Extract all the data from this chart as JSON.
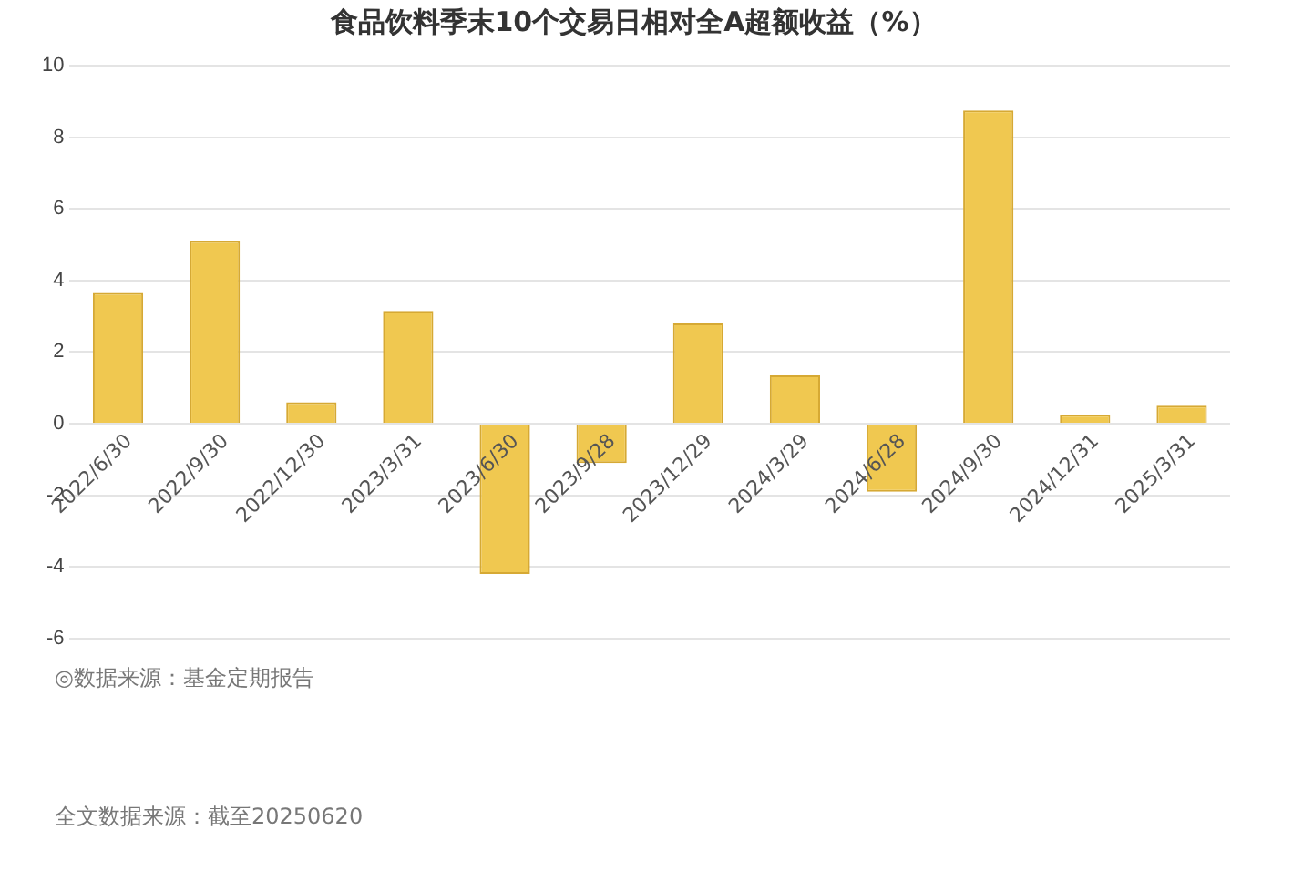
{
  "chart_data": {
    "type": "bar",
    "title": "食品饮料季末10个交易日相对全A超额收益（%）",
    "categories": [
      "2022/6/30",
      "2022/9/30",
      "2022/12/30",
      "2023/3/31",
      "2023/6/30",
      "2023/9/28",
      "2023/12/29",
      "2024/3/29",
      "2024/6/28",
      "2024/9/30",
      "2024/12/31",
      "2025/3/31"
    ],
    "values": [
      3.65,
      5.1,
      0.6,
      3.15,
      -4.2,
      -1.1,
      2.8,
      1.35,
      -1.9,
      8.75,
      0.25,
      0.5
    ],
    "color": "#f0c850",
    "ylim": [
      -6,
      10
    ],
    "yticks": [
      -6,
      -4,
      -2,
      0,
      2,
      4,
      6,
      8,
      10
    ],
    "grid": "y",
    "legend": false,
    "annotations": [
      "◎数据来源：基金定期报告",
      "全文数据来源：截至20250620"
    ]
  }
}
